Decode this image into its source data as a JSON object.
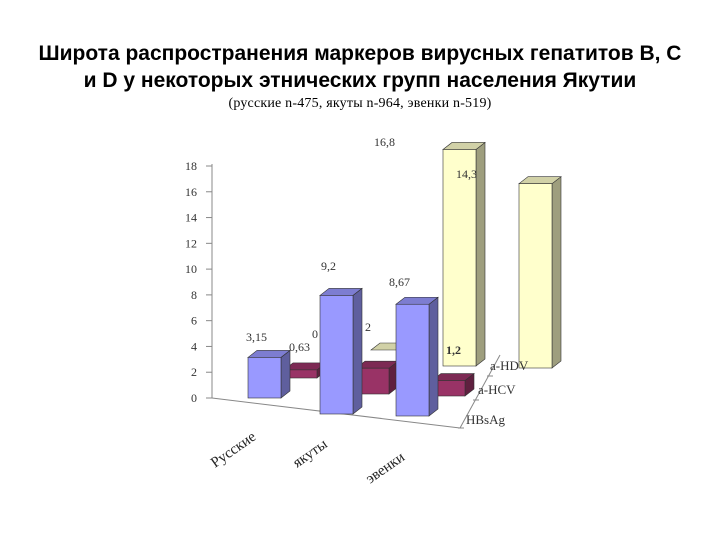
{
  "header": {
    "title_line1": "Широта распространения маркеров вирусных гепатитов В, С",
    "title_line2": "и D у некоторых этнических групп населения Якутии",
    "subtitle": "(русские n-475,    якуты n-964,    эвенки n-519)"
  },
  "chart_data": {
    "type": "bar",
    "categories": [
      "Русские",
      "якуты",
      "эвенки"
    ],
    "series": [
      {
        "name": "HBsAg",
        "values": [
          3.15,
          9.2,
          8.67
        ],
        "labels": [
          "3,15",
          "9,2",
          "8,67"
        ],
        "color": "#9999ff"
      },
      {
        "name": "a-HCV",
        "values": [
          0.63,
          2,
          1.2
        ],
        "labels": [
          "0,63",
          "2",
          "1,2"
        ],
        "color": "#993366"
      },
      {
        "name": "a-HDV",
        "values": [
          0,
          16.8,
          14.3
        ],
        "labels": [
          "0",
          "16,8",
          "14,3"
        ],
        "color": "#ffffcc"
      }
    ],
    "y_ticks": [
      "0",
      "2",
      "4",
      "6",
      "8",
      "10",
      "12",
      "14",
      "16",
      "18"
    ],
    "ylim": [
      0,
      18
    ],
    "grid": false,
    "legend": "series labels on depth axis (right)"
  }
}
